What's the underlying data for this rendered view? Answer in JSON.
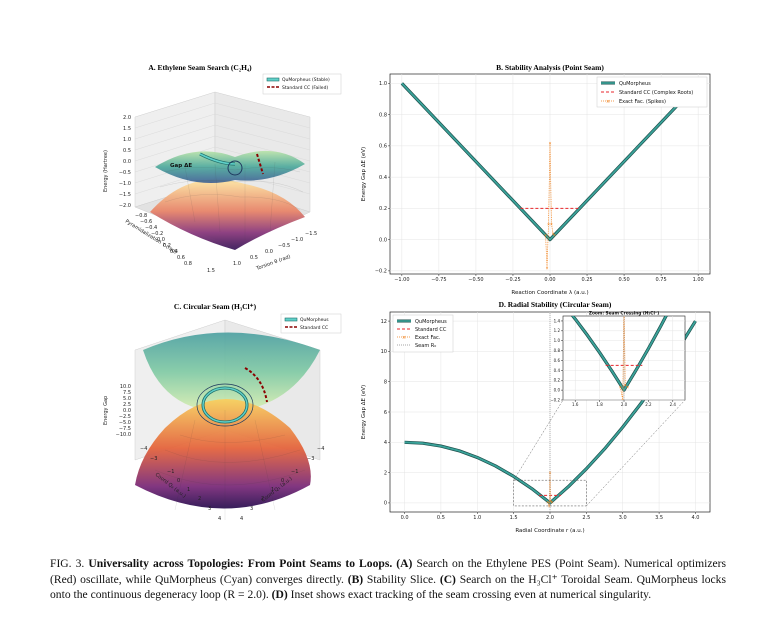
{
  "panel_a": {
    "title": "A. Ethylene Seam Search (C₂H₄)",
    "legend": [
      "QuMorpheus (Stable)",
      "Standard CC (Failed)"
    ],
    "zlabel": "Energy (Hartree)",
    "xlabel": "Pyramidalization τ (rad)",
    "ylabel": "Torsion θ (rad)",
    "annotation": "Gap ΔE",
    "zticks": [
      "2.0",
      "1.5",
      "1.0",
      "0.5",
      "0.0",
      "−0.5",
      "−1.0",
      "−1.5",
      "−2.0"
    ],
    "xticks": [
      "−0.8",
      "−0.6",
      "−0.4",
      "−0.2",
      "0.0",
      "0.2",
      "0.4",
      "0.6",
      "0.8"
    ],
    "yticks": [
      "1.5",
      "1.0",
      "0.5",
      "0.0",
      "−0.5",
      "−1.0",
      "−1.5"
    ]
  },
  "panel_c": {
    "title": "C. Circular Seam (H₃Cl⁺)",
    "legend": [
      "QuMorpheus",
      "Standard CC"
    ],
    "zlabel": "Energy Gap",
    "xlabel": "Coord Q₂ (a.u.)",
    "ylabel": "Coord Q₁ (a.u.)",
    "zticks": [
      "10.0",
      "7.5",
      "5.0",
      "2.5",
      "0.0",
      "−2.5",
      "−5.0",
      "−7.5",
      "−10.0"
    ],
    "xticks": [
      "−4",
      "−3",
      "−1",
      "0",
      "1",
      "2",
      "3",
      "4"
    ],
    "yticks": [
      "4",
      "3",
      "2",
      "1",
      "0",
      "−1",
      "−3",
      "−4"
    ]
  },
  "chart_data": [
    {
      "type": "line",
      "title": "B. Stability Analysis (Point Seam)",
      "xlabel": "Reaction Coordinate λ (a.u.)",
      "ylabel": "Energy Gap ΔE (eV)",
      "xlim": [
        -1.08,
        1.08
      ],
      "ylim": [
        -0.22,
        1.06
      ],
      "xticks": [
        -1.0,
        -0.75,
        -0.5,
        -0.25,
        0.0,
        0.25,
        0.5,
        0.75,
        1.0
      ],
      "xtick_labels": [
        "−1.00",
        "−0.75",
        "−0.50",
        "−0.25",
        "0.00",
        "0.25",
        "0.50",
        "0.75",
        "1.00"
      ],
      "yticks": [
        -0.2,
        0.0,
        0.2,
        0.4,
        0.6,
        0.8,
        1.0
      ],
      "ytick_labels": [
        "−0.2",
        "0.0",
        "0.2",
        "0.4",
        "0.6",
        "0.8",
        "1.0"
      ],
      "grid": true,
      "legend_position": "top-right",
      "series": [
        {
          "name": "QuMorpheus",
          "color": "#3aa39a",
          "x": [
            -1.0,
            0.0,
            1.0
          ],
          "y": [
            1.0,
            0.0,
            1.0
          ]
        },
        {
          "name": "Standard CC (Complex Roots)",
          "color": "#e8262b",
          "x": [
            -0.2,
            0.2
          ],
          "y": [
            0.2,
            0.2
          ]
        },
        {
          "name": "Exact Fac. (Spikes)",
          "color": "#f07f18",
          "x": [
            -0.03,
            -0.02,
            -0.01,
            0.0,
            0.01,
            0.02,
            0.03
          ],
          "y": [
            0.03,
            -0.18,
            0.1,
            0.62,
            0.1,
            0.04,
            0.03
          ]
        }
      ]
    },
    {
      "type": "line",
      "title": "D. Radial Stability (Circular Seam)",
      "xlabel": "Radial Coordinate r (a.u.)",
      "ylabel": "Energy Gap ΔE (eV)",
      "xlim": [
        -0.2,
        4.2
      ],
      "ylim": [
        -0.6,
        12.6
      ],
      "xticks": [
        0.0,
        0.5,
        1.0,
        1.5,
        2.0,
        2.5,
        3.0,
        3.5,
        4.0
      ],
      "xtick_labels": [
        "0.0",
        "0.5",
        "1.0",
        "1.5",
        "2.0",
        "2.5",
        "3.0",
        "3.5",
        "4.0"
      ],
      "yticks": [
        0,
        2,
        4,
        6,
        8,
        10,
        12
      ],
      "ytick_labels": [
        "0",
        "2",
        "4",
        "6",
        "8",
        "10",
        "12"
      ],
      "grid": true,
      "legend_position": "top-left",
      "series": [
        {
          "name": "QuMorpheus",
          "color": "#3aa39a",
          "x": [
            0.0,
            0.25,
            0.5,
            0.75,
            1.0,
            1.25,
            1.5,
            1.75,
            2.0,
            2.25,
            2.5,
            2.75,
            3.0,
            3.25,
            3.5,
            3.75,
            4.0
          ],
          "y": [
            4.0,
            3.94,
            3.75,
            3.44,
            3.0,
            2.44,
            1.75,
            0.94,
            0.0,
            1.06,
            2.25,
            3.56,
            5.0,
            6.56,
            8.25,
            10.06,
            12.0
          ]
        },
        {
          "name": "Standard CC",
          "color": "#e8262b",
          "x": [
            1.85,
            2.15
          ],
          "y": [
            0.5,
            0.5
          ]
        },
        {
          "name": "Exact Fac.",
          "color": "#f07f18",
          "x": [
            1.97,
            1.99,
            2.0,
            2.01,
            2.03
          ],
          "y": [
            0.06,
            -0.2,
            2.0,
            0.1,
            0.06
          ]
        },
        {
          "name": "Seam R₀",
          "color": "#888888",
          "x": [
            2.0,
            2.0
          ],
          "y": [
            -0.6,
            12.6
          ]
        }
      ],
      "inset": {
        "title": "Zoom: Seam Crossing (H₃Cl⁺)",
        "xlim": [
          1.5,
          2.5
        ],
        "ylim": [
          -0.2,
          1.5
        ],
        "xticks": [
          1.6,
          1.8,
          2.0,
          2.2,
          2.4
        ],
        "xtick_labels": [
          "1.6",
          "1.8",
          "2.0",
          "2.2",
          "2.4"
        ],
        "yticks": [
          -0.2,
          0.0,
          0.2,
          0.4,
          0.6,
          0.8,
          1.0,
          1.2,
          1.4
        ],
        "ytick_labels": [
          "−0.2",
          "0.0",
          "0.2",
          "0.4",
          "0.6",
          "0.8",
          "1.0",
          "1.2",
          "1.4"
        ]
      }
    }
  ],
  "caption": {
    "label": "FIG. 3.",
    "title": "Universality across Topologies: From Point Seams to Loops.",
    "part_a_label": "(A)",
    "part_a": " Search on the Ethylene PES (Point Seam). Numerical optimizers (Red) oscillate, while QuMorpheus (Cyan) converges directly. ",
    "part_b_label": "(B)",
    "part_b": " Stability Slice. ",
    "part_c_label": "(C)",
    "part_c": " Search on the H₃Cl⁺ Toroidal Seam. QuMorpheus locks onto the continuous degeneracy loop (R = 2.0). ",
    "part_d_label": "(D)",
    "part_d": " Inset shows exact tracking of the seam crossing even at numerical singularity."
  }
}
